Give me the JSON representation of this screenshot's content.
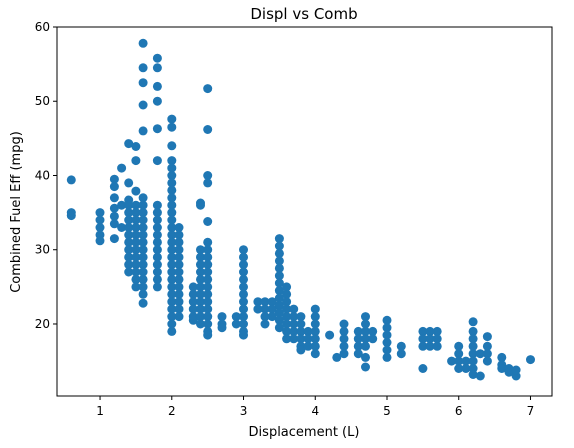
{
  "chart_data": {
    "type": "scatter",
    "title": "Displ vs Comb",
    "xlabel": "Displacement (L)",
    "ylabel": "Combined Fuel Eff (mpg)",
    "xlim": [
      0.4,
      7.3
    ],
    "ylim": [
      10.3,
      60
    ],
    "xticks": [
      1,
      2,
      3,
      4,
      5,
      6,
      7
    ],
    "yticks": [
      20,
      30,
      40,
      50,
      60
    ],
    "grid": false,
    "legend": "none",
    "marker_color": "#1f77b4",
    "points": [
      [
        0.6,
        39.4
      ],
      [
        0.6,
        35.0
      ],
      [
        0.6,
        34.6
      ],
      [
        1.0,
        35.0
      ],
      [
        1.0,
        34.0
      ],
      [
        1.0,
        33.0
      ],
      [
        1.0,
        32.0
      ],
      [
        1.0,
        31.2
      ],
      [
        1.2,
        39.5
      ],
      [
        1.2,
        38.5
      ],
      [
        1.2,
        37.0
      ],
      [
        1.2,
        35.6
      ],
      [
        1.2,
        34.5
      ],
      [
        1.2,
        33.5
      ],
      [
        1.2,
        31.5
      ],
      [
        1.3,
        41.0
      ],
      [
        1.3,
        36.0
      ],
      [
        1.3,
        33.0
      ],
      [
        1.4,
        44.3
      ],
      [
        1.4,
        39.0
      ],
      [
        1.4,
        36.7
      ],
      [
        1.4,
        36.0
      ],
      [
        1.4,
        35.0
      ],
      [
        1.4,
        34.0
      ],
      [
        1.4,
        33.0
      ],
      [
        1.4,
        32.0
      ],
      [
        1.4,
        31.0
      ],
      [
        1.4,
        30.0
      ],
      [
        1.4,
        29.0
      ],
      [
        1.4,
        28.0
      ],
      [
        1.4,
        27.0
      ],
      [
        1.5,
        43.9
      ],
      [
        1.5,
        42.0
      ],
      [
        1.5,
        37.9
      ],
      [
        1.5,
        36.0
      ],
      [
        1.5,
        35.0
      ],
      [
        1.5,
        34.0
      ],
      [
        1.5,
        33.0
      ],
      [
        1.5,
        32.0
      ],
      [
        1.5,
        31.0
      ],
      [
        1.5,
        30.0
      ],
      [
        1.5,
        29.0
      ],
      [
        1.5,
        28.0
      ],
      [
        1.5,
        27.0
      ],
      [
        1.5,
        26.0
      ],
      [
        1.5,
        25.0
      ],
      [
        1.6,
        57.8
      ],
      [
        1.6,
        54.5
      ],
      [
        1.6,
        52.5
      ],
      [
        1.6,
        49.5
      ],
      [
        1.6,
        46.0
      ],
      [
        1.6,
        37.0
      ],
      [
        1.6,
        36.0
      ],
      [
        1.6,
        35.0
      ],
      [
        1.6,
        34.0
      ],
      [
        1.6,
        33.0
      ],
      [
        1.6,
        32.0
      ],
      [
        1.6,
        31.0
      ],
      [
        1.6,
        30.0
      ],
      [
        1.6,
        29.0
      ],
      [
        1.6,
        28.0
      ],
      [
        1.6,
        27.0
      ],
      [
        1.6,
        26.0
      ],
      [
        1.6,
        25.0
      ],
      [
        1.6,
        24.0
      ],
      [
        1.6,
        22.8
      ],
      [
        1.8,
        55.8
      ],
      [
        1.8,
        54.5
      ],
      [
        1.8,
        52.0
      ],
      [
        1.8,
        50.0
      ],
      [
        1.8,
        46.3
      ],
      [
        1.8,
        42.0
      ],
      [
        1.8,
        36.0
      ],
      [
        1.8,
        35.0
      ],
      [
        1.8,
        34.0
      ],
      [
        1.8,
        33.0
      ],
      [
        1.8,
        32.0
      ],
      [
        1.8,
        31.0
      ],
      [
        1.8,
        30.0
      ],
      [
        1.8,
        29.0
      ],
      [
        1.8,
        28.0
      ],
      [
        1.8,
        27.0
      ],
      [
        1.8,
        26.0
      ],
      [
        1.8,
        25.0
      ],
      [
        2.0,
        47.6
      ],
      [
        2.0,
        46.5
      ],
      [
        2.0,
        44.0
      ],
      [
        2.0,
        42.0
      ],
      [
        2.0,
        41.0
      ],
      [
        2.0,
        40.0
      ],
      [
        2.0,
        39.0
      ],
      [
        2.0,
        38.0
      ],
      [
        2.0,
        37.0
      ],
      [
        2.0,
        36.0
      ],
      [
        2.0,
        35.0
      ],
      [
        2.0,
        34.0
      ],
      [
        2.0,
        33.0
      ],
      [
        2.0,
        32.0
      ],
      [
        2.0,
        31.0
      ],
      [
        2.0,
        30.0
      ],
      [
        2.0,
        29.0
      ],
      [
        2.0,
        28.0
      ],
      [
        2.0,
        27.0
      ],
      [
        2.0,
        26.0
      ],
      [
        2.0,
        25.0
      ],
      [
        2.0,
        24.0
      ],
      [
        2.0,
        23.0
      ],
      [
        2.0,
        22.0
      ],
      [
        2.0,
        21.0
      ],
      [
        2.0,
        20.0
      ],
      [
        2.0,
        19.0
      ],
      [
        2.1,
        33.0
      ],
      [
        2.1,
        32.0
      ],
      [
        2.1,
        31.0
      ],
      [
        2.1,
        30.0
      ],
      [
        2.1,
        29.0
      ],
      [
        2.1,
        28.0
      ],
      [
        2.1,
        27.0
      ],
      [
        2.1,
        26.0
      ],
      [
        2.1,
        25.0
      ],
      [
        2.1,
        24.0
      ],
      [
        2.1,
        23.0
      ],
      [
        2.1,
        22.0
      ],
      [
        2.1,
        21.0
      ],
      [
        2.3,
        25.0
      ],
      [
        2.3,
        24.0
      ],
      [
        2.3,
        23.0
      ],
      [
        2.3,
        22.0
      ],
      [
        2.3,
        21.0
      ],
      [
        2.3,
        20.5
      ],
      [
        2.4,
        36.3
      ],
      [
        2.4,
        36.0
      ],
      [
        2.4,
        30.0
      ],
      [
        2.4,
        29.0
      ],
      [
        2.4,
        28.0
      ],
      [
        2.4,
        27.0
      ],
      [
        2.4,
        26.0
      ],
      [
        2.4,
        25.0
      ],
      [
        2.4,
        24.0
      ],
      [
        2.4,
        23.0
      ],
      [
        2.4,
        22.0
      ],
      [
        2.4,
        21.0
      ],
      [
        2.4,
        20.0
      ],
      [
        2.5,
        51.7
      ],
      [
        2.5,
        46.2
      ],
      [
        2.5,
        40.0
      ],
      [
        2.5,
        39.0
      ],
      [
        2.5,
        33.8
      ],
      [
        2.5,
        31.0
      ],
      [
        2.5,
        30.0
      ],
      [
        2.5,
        29.0
      ],
      [
        2.5,
        28.0
      ],
      [
        2.5,
        27.0
      ],
      [
        2.5,
        26.0
      ],
      [
        2.5,
        25.0
      ],
      [
        2.5,
        24.0
      ],
      [
        2.5,
        23.0
      ],
      [
        2.5,
        22.0
      ],
      [
        2.5,
        21.0
      ],
      [
        2.5,
        20.0
      ],
      [
        2.5,
        19.0
      ],
      [
        2.5,
        18.5
      ],
      [
        2.7,
        21.0
      ],
      [
        2.7,
        20.0
      ],
      [
        2.7,
        19.5
      ],
      [
        2.9,
        21.0
      ],
      [
        2.9,
        20.0
      ],
      [
        3.0,
        30.0
      ],
      [
        3.0,
        29.0
      ],
      [
        3.0,
        28.0
      ],
      [
        3.0,
        27.0
      ],
      [
        3.0,
        26.0
      ],
      [
        3.0,
        25.0
      ],
      [
        3.0,
        24.0
      ],
      [
        3.0,
        23.0
      ],
      [
        3.0,
        22.0
      ],
      [
        3.0,
        21.0
      ],
      [
        3.0,
        20.0
      ],
      [
        3.0,
        19.0
      ],
      [
        3.0,
        18.5
      ],
      [
        3.2,
        23.0
      ],
      [
        3.2,
        22.0
      ],
      [
        3.3,
        23.0
      ],
      [
        3.3,
        22.0
      ],
      [
        3.3,
        21.0
      ],
      [
        3.3,
        20.0
      ],
      [
        3.4,
        23.0
      ],
      [
        3.4,
        22.0
      ],
      [
        3.4,
        21.0
      ],
      [
        3.5,
        31.5
      ],
      [
        3.5,
        30.5
      ],
      [
        3.5,
        29.5
      ],
      [
        3.5,
        28.5
      ],
      [
        3.5,
        27.5
      ],
      [
        3.5,
        26.5
      ],
      [
        3.5,
        25.5
      ],
      [
        3.5,
        24.5
      ],
      [
        3.5,
        23.5
      ],
      [
        3.5,
        22.5
      ],
      [
        3.5,
        21.5
      ],
      [
        3.5,
        20.5
      ],
      [
        3.5,
        19.5
      ],
      [
        3.6,
        25.0
      ],
      [
        3.6,
        24.0
      ],
      [
        3.6,
        23.0
      ],
      [
        3.6,
        22.0
      ],
      [
        3.6,
        21.0
      ],
      [
        3.6,
        20.0
      ],
      [
        3.6,
        19.0
      ],
      [
        3.6,
        18.0
      ],
      [
        3.7,
        22.0
      ],
      [
        3.7,
        21.0
      ],
      [
        3.7,
        20.0
      ],
      [
        3.7,
        19.0
      ],
      [
        3.7,
        18.0
      ],
      [
        3.8,
        21.0
      ],
      [
        3.8,
        20.0
      ],
      [
        3.8,
        19.0
      ],
      [
        3.8,
        18.0
      ],
      [
        3.8,
        17.0
      ],
      [
        3.8,
        16.5
      ],
      [
        3.9,
        19.0
      ],
      [
        3.9,
        18.0
      ],
      [
        3.9,
        17.0
      ],
      [
        4.0,
        22.0
      ],
      [
        4.0,
        21.0
      ],
      [
        4.0,
        20.0
      ],
      [
        4.0,
        19.0
      ],
      [
        4.0,
        18.0
      ],
      [
        4.0,
        17.0
      ],
      [
        4.0,
        16.0
      ],
      [
        4.2,
        18.5
      ],
      [
        4.3,
        15.5
      ],
      [
        4.4,
        20.0
      ],
      [
        4.4,
        19.0
      ],
      [
        4.4,
        18.0
      ],
      [
        4.4,
        17.0
      ],
      [
        4.4,
        16.0
      ],
      [
        4.6,
        19.0
      ],
      [
        4.6,
        18.0
      ],
      [
        4.6,
        17.0
      ],
      [
        4.6,
        16.0
      ],
      [
        4.7,
        21.0
      ],
      [
        4.7,
        20.0
      ],
      [
        4.7,
        19.0
      ],
      [
        4.7,
        18.0
      ],
      [
        4.7,
        17.0
      ],
      [
        4.7,
        15.5
      ],
      [
        4.7,
        14.2
      ],
      [
        4.8,
        19.0
      ],
      [
        4.8,
        18.0
      ],
      [
        5.0,
        20.5
      ],
      [
        5.0,
        19.5
      ],
      [
        5.0,
        18.5
      ],
      [
        5.0,
        17.5
      ],
      [
        5.0,
        16.5
      ],
      [
        5.0,
        15.5
      ],
      [
        5.2,
        17.0
      ],
      [
        5.2,
        16.0
      ],
      [
        5.5,
        19.0
      ],
      [
        5.5,
        18.0
      ],
      [
        5.5,
        17.0
      ],
      [
        5.5,
        14.0
      ],
      [
        5.6,
        19.0
      ],
      [
        5.6,
        18.0
      ],
      [
        5.6,
        17.0
      ],
      [
        5.7,
        19.0
      ],
      [
        5.7,
        18.0
      ],
      [
        5.7,
        17.0
      ],
      [
        5.9,
        15.0
      ],
      [
        6.0,
        17.0
      ],
      [
        6.0,
        16.0
      ],
      [
        6.0,
        15.0
      ],
      [
        6.0,
        14.0
      ],
      [
        6.1,
        15.0
      ],
      [
        6.1,
        14.0
      ],
      [
        6.2,
        20.3
      ],
      [
        6.2,
        19.0
      ],
      [
        6.2,
        18.0
      ],
      [
        6.2,
        17.0
      ],
      [
        6.2,
        16.0
      ],
      [
        6.2,
        15.0
      ],
      [
        6.2,
        14.0
      ],
      [
        6.2,
        13.2
      ],
      [
        6.3,
        13.0
      ],
      [
        6.3,
        16.0
      ],
      [
        6.4,
        18.3
      ],
      [
        6.4,
        17.0
      ],
      [
        6.4,
        16.0
      ],
      [
        6.4,
        15.0
      ],
      [
        6.6,
        15.5
      ],
      [
        6.6,
        14.5
      ],
      [
        6.6,
        14.0
      ],
      [
        6.7,
        14.0
      ],
      [
        6.7,
        13.5
      ],
      [
        6.8,
        13.0
      ],
      [
        6.8,
        13.8
      ],
      [
        7.0,
        15.2
      ]
    ]
  }
}
